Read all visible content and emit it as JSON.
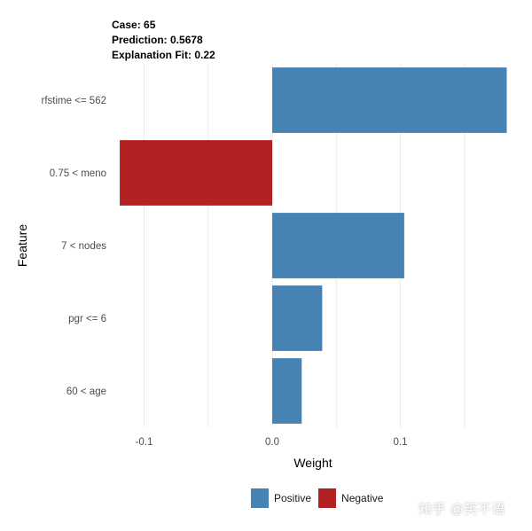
{
  "header": {
    "case": "Case: 65",
    "prediction": "Prediction: 0.5678",
    "fit": "Explanation Fit: 0.22"
  },
  "legend": {
    "positive_label": "Positive",
    "negative_label": "Negative"
  },
  "watermark": "知乎 @笑不语",
  "colors": {
    "positive": "#4682B4",
    "negative": "#B22222",
    "grid": "#ebebeb"
  },
  "chart_data": {
    "type": "bar",
    "orientation": "horizontal",
    "categories": [
      "rfstime <= 562",
      "0.75 < meno",
      "7 < nodes",
      "pgr <= 6",
      "60 < age"
    ],
    "values": [
      0.183,
      -0.119,
      0.103,
      0.039,
      0.023
    ],
    "xlabel": "Weight",
    "ylabel": "Feature",
    "xticks": [
      -0.1,
      0.0,
      0.1
    ],
    "xtick_labels": [
      "-0.1",
      "0.0",
      "0.1"
    ],
    "xlim": [
      -0.1225,
      0.1875
    ],
    "grid": true,
    "legend_position": "bottom"
  }
}
